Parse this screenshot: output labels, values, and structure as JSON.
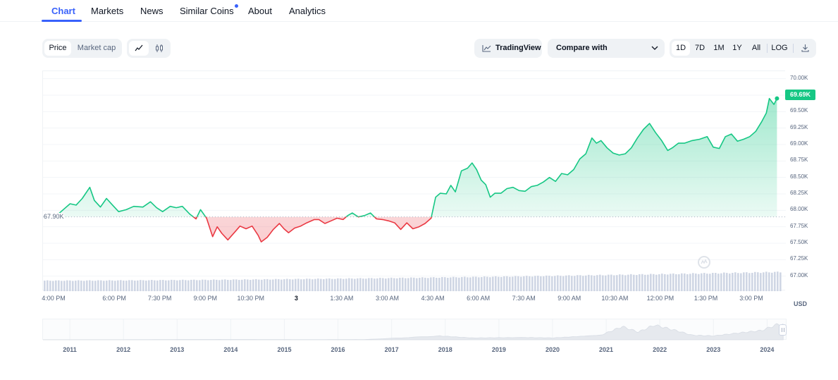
{
  "tabs": [
    {
      "label": "Chart",
      "active": true
    },
    {
      "label": "Markets",
      "active": false
    },
    {
      "label": "News",
      "active": false
    },
    {
      "label": "Similar Coins",
      "active": false,
      "dot": true
    },
    {
      "label": "About",
      "active": false
    },
    {
      "label": "Analytics",
      "active": false
    }
  ],
  "controls": {
    "price_label": "Price",
    "market_cap_label": "Market cap",
    "line_icon": "line-chart-icon",
    "candle_icon": "candlestick-icon",
    "tradingview_label": "TradingView",
    "compare_label": "Compare with",
    "ranges": [
      "1D",
      "7D",
      "1M",
      "1Y",
      "All"
    ],
    "active_range": "1D",
    "log_label": "LOG",
    "download_icon": "download-icon"
  },
  "colors": {
    "accent": "#3861fb",
    "up": "#16c784",
    "down": "#ea3943",
    "volume": "#cfd6e4"
  },
  "chart_data": {
    "type": "line",
    "title": "",
    "reference_label": "67.90K",
    "reference_value": 67900,
    "current_label": "69.69K",
    "current_value": 69690,
    "ylim": [
      66900,
      70050
    ],
    "y_ticks": [
      "70.00K",
      "69.75K",
      "69.50K",
      "69.25K",
      "69.00K",
      "68.75K",
      "68.50K",
      "68.25K",
      "68.00K",
      "67.75K",
      "67.50K",
      "67.25K",
      "67.00K"
    ],
    "y_tick_values": [
      70000,
      69750,
      69500,
      69250,
      69000,
      68750,
      68500,
      68250,
      68000,
      67750,
      67500,
      67250,
      67000
    ],
    "x_ticks": [
      "4:00 PM",
      "6:00 PM",
      "7:30 PM",
      "9:00 PM",
      "10:30 PM",
      "3",
      "1:30 AM",
      "3:00 AM",
      "4:30 AM",
      "6:00 AM",
      "7:30 AM",
      "9:00 AM",
      "10:30 AM",
      "12:00 PM",
      "1:30 PM",
      "3:00 PM"
    ],
    "x_tick_hours": [
      0,
      2,
      3.5,
      5,
      6.5,
      8,
      9.5,
      11,
      12.5,
      14,
      15.5,
      17,
      18.5,
      20,
      21.5,
      23
    ],
    "x_range_hours": [
      0,
      24.3
    ],
    "currency": "USD",
    "series": [
      {
        "name": "Price",
        "points": [
          [
            0,
            67900
          ],
          [
            0.2,
            67950
          ],
          [
            0.35,
            67920
          ],
          [
            0.55,
            68000
          ],
          [
            0.8,
            68100
          ],
          [
            1.0,
            68080
          ],
          [
            1.2,
            68180
          ],
          [
            1.45,
            68350
          ],
          [
            1.6,
            68150
          ],
          [
            1.8,
            68050
          ],
          [
            2.0,
            68180
          ],
          [
            2.2,
            68080
          ],
          [
            2.4,
            67980
          ],
          [
            2.65,
            68010
          ],
          [
            2.9,
            68060
          ],
          [
            3.2,
            68050
          ],
          [
            3.45,
            68130
          ],
          [
            3.65,
            68040
          ],
          [
            3.85,
            67980
          ],
          [
            4.1,
            68060
          ],
          [
            4.3,
            68040
          ],
          [
            4.5,
            68060
          ],
          [
            4.75,
            67940
          ],
          [
            4.95,
            67870
          ],
          [
            5.1,
            68010
          ],
          [
            5.3,
            67880
          ],
          [
            5.5,
            67600
          ],
          [
            5.65,
            67750
          ],
          [
            5.8,
            67650
          ],
          [
            6.0,
            67550
          ],
          [
            6.25,
            67680
          ],
          [
            6.4,
            67760
          ],
          [
            6.6,
            67720
          ],
          [
            6.8,
            67760
          ],
          [
            7.0,
            67620
          ],
          [
            7.1,
            67520
          ],
          [
            7.3,
            67590
          ],
          [
            7.5,
            67710
          ],
          [
            7.7,
            67800
          ],
          [
            7.85,
            67720
          ],
          [
            8.0,
            67660
          ],
          [
            8.2,
            67730
          ],
          [
            8.4,
            67760
          ],
          [
            8.6,
            67810
          ],
          [
            8.85,
            67860
          ],
          [
            9.0,
            67860
          ],
          [
            9.2,
            67800
          ],
          [
            9.4,
            67840
          ],
          [
            9.6,
            67880
          ],
          [
            9.8,
            67860
          ],
          [
            9.95,
            67920
          ],
          [
            10.1,
            67960
          ],
          [
            10.3,
            67900
          ],
          [
            10.5,
            67920
          ],
          [
            10.7,
            67960
          ],
          [
            10.9,
            67870
          ],
          [
            11.1,
            67860
          ],
          [
            11.3,
            67840
          ],
          [
            11.5,
            67810
          ],
          [
            11.7,
            67710
          ],
          [
            11.9,
            67810
          ],
          [
            12.1,
            67720
          ],
          [
            12.3,
            67750
          ],
          [
            12.5,
            67800
          ],
          [
            12.7,
            67880
          ],
          [
            12.85,
            68200
          ],
          [
            13.0,
            68260
          ],
          [
            13.2,
            68250
          ],
          [
            13.35,
            68380
          ],
          [
            13.5,
            68280
          ],
          [
            13.7,
            68600
          ],
          [
            13.9,
            68640
          ],
          [
            14.05,
            68720
          ],
          [
            14.2,
            68620
          ],
          [
            14.35,
            68460
          ],
          [
            14.5,
            68390
          ],
          [
            14.65,
            68200
          ],
          [
            14.8,
            68260
          ],
          [
            15.0,
            68260
          ],
          [
            15.2,
            68330
          ],
          [
            15.4,
            68350
          ],
          [
            15.6,
            68300
          ],
          [
            15.8,
            68290
          ],
          [
            16.0,
            68360
          ],
          [
            16.2,
            68380
          ],
          [
            16.4,
            68430
          ],
          [
            16.6,
            68500
          ],
          [
            16.8,
            68440
          ],
          [
            17.0,
            68560
          ],
          [
            17.2,
            68540
          ],
          [
            17.4,
            68620
          ],
          [
            17.6,
            68780
          ],
          [
            17.8,
            68860
          ],
          [
            18.0,
            69100
          ],
          [
            18.15,
            69020
          ],
          [
            18.3,
            69060
          ],
          [
            18.5,
            68950
          ],
          [
            18.7,
            68870
          ],
          [
            18.9,
            68840
          ],
          [
            19.1,
            68860
          ],
          [
            19.3,
            68950
          ],
          [
            19.5,
            69100
          ],
          [
            19.7,
            69230
          ],
          [
            19.9,
            69320
          ],
          [
            20.1,
            69180
          ],
          [
            20.3,
            69060
          ],
          [
            20.5,
            68910
          ],
          [
            20.65,
            68950
          ],
          [
            20.85,
            69020
          ],
          [
            21.05,
            69020
          ],
          [
            21.3,
            69060
          ],
          [
            21.55,
            69080
          ],
          [
            21.8,
            69120
          ],
          [
            22.0,
            68960
          ],
          [
            22.2,
            68940
          ],
          [
            22.4,
            69120
          ],
          [
            22.6,
            69160
          ],
          [
            22.8,
            69050
          ],
          [
            23.0,
            69080
          ],
          [
            23.2,
            69120
          ],
          [
            23.4,
            69200
          ],
          [
            23.6,
            69350
          ],
          [
            23.75,
            69480
          ],
          [
            23.85,
            69700
          ],
          [
            24.0,
            69610
          ],
          [
            24.1,
            69700
          ]
        ]
      }
    ],
    "volume": {
      "description": "volume bars along bottom",
      "levels": [
        0.55,
        0.6,
        0.65,
        0.72,
        0.82,
        1.0
      ]
    },
    "navigator": {
      "years": [
        "2011",
        "2012",
        "2013",
        "2014",
        "2015",
        "2016",
        "2017",
        "2018",
        "2019",
        "2020",
        "2021",
        "2022",
        "2023",
        "2024"
      ],
      "history": [
        [
          2010.5,
          0
        ],
        [
          2012.0,
          0.002
        ],
        [
          2013.8,
          0.02
        ],
        [
          2014.5,
          0.01
        ],
        [
          2015.5,
          0.005
        ],
        [
          2016.5,
          0.012
        ],
        [
          2017.9,
          0.25
        ],
        [
          2018.5,
          0.12
        ],
        [
          2019.5,
          0.15
        ],
        [
          2020.0,
          0.12
        ],
        [
          2020.9,
          0.3
        ],
        [
          2021.3,
          0.85
        ],
        [
          2021.6,
          0.5
        ],
        [
          2021.9,
          0.95
        ],
        [
          2022.3,
          0.6
        ],
        [
          2022.6,
          0.3
        ],
        [
          2023.0,
          0.25
        ],
        [
          2023.5,
          0.45
        ],
        [
          2023.9,
          0.6
        ],
        [
          2024.2,
          1.0
        ],
        [
          2024.3,
          1.0
        ]
      ]
    }
  }
}
